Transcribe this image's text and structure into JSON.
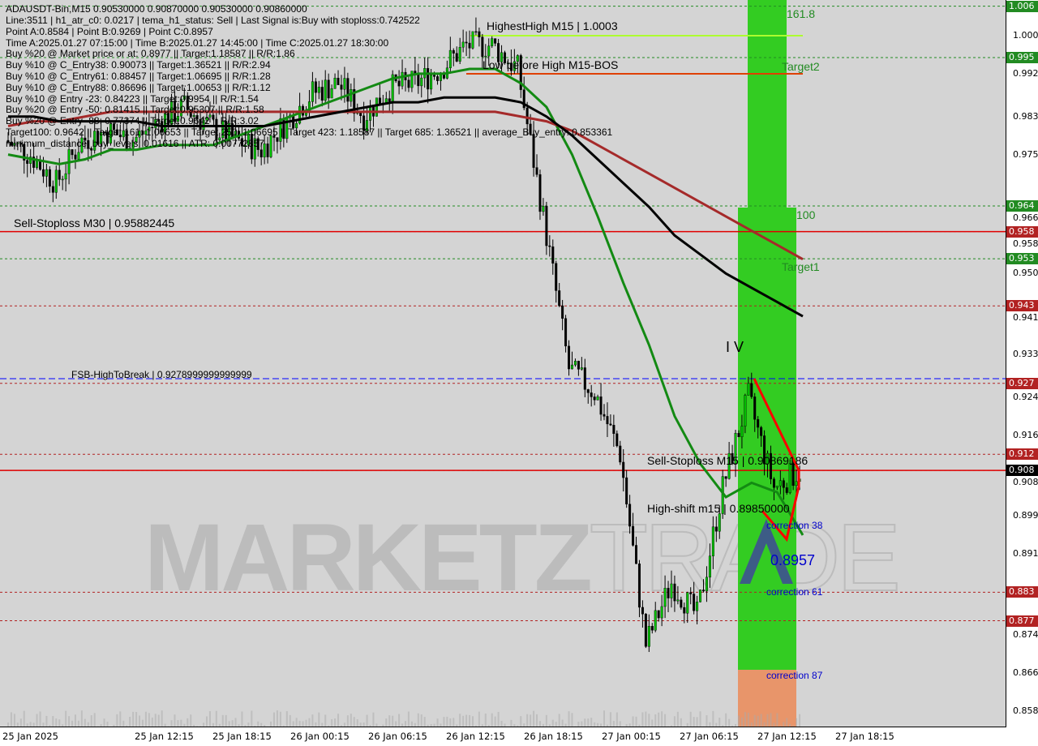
{
  "header": {
    "symbol_line": "ADAUSDT-Bin,M15  0.90530000 0.90870000 0.90530000 0.90860000",
    "lines": [
      "Line:3511 | h1_atr_c0: 0.0217 | tema_h1_status: Sell | Last Signal is:Buy with stoploss:0.742522",
      "Point A:0.8584 | Point B:0.9269 | Point C:0.8957",
      "Time A:2025.01.27 07:15:00 | Time B:2025.01.27 14:45:00 | Time C:2025.01.27 18:30:00",
      "Buy %20 @ Market price or at: 0.8977 || Target:1.18587 || R/R:1.86",
      "Buy %10 @ C_Entry38: 0.90073 || Target:1.36521 || R/R:2.94",
      "Buy %10 @ C_Entry61: 0.88457 || Target:1.06695 || R/R:1.28",
      "Buy %10 @ C_Entry88: 0.86696 || Target:1.00653 || R/R:1.12",
      "Buy %10 @ Entry -23: 0.84223 || Target:0.9954 || R/R:1.54",
      "Buy %20 @ Entry -50: 0.81415 || Target:0.95307 || R/R:1.58",
      "Buy %20 @ Entry -88: 0.77374 || Target:0.9642 || R/R:3.02",
      "Target100: 0.9642 || Target 161: 1.00653 || Target 250: 1.06695 || Target 423: 1.18587 || Target 685: 1.36521 || average_Buy_entry: 0.853361",
      "minimum_distance_buy_levels: 0.01616 || ATR: 0.00772857"
    ]
  },
  "annotations": {
    "highest_high": "HighestHigh   M15 | 1.0003",
    "low_before_high": "Low before High   M15-BOS",
    "sell_stoploss_m30": "Sell-Stoploss M30 | 0.95882445",
    "fsb": "FSB-HighToBreak | 0.9278999999999999",
    "sell_stoploss_m15": "Sell-Stoploss M15 | 0.90869186",
    "high_shift": "High-shift m15 | 0.89850000",
    "point_c": "0.8957",
    "wave": "I V",
    "fib_1618": "161.8",
    "target2": "Target2",
    "fib_100": "100",
    "target1": "Target1",
    "corr38": "correction 38",
    "corr61": "correction 61",
    "corr87": "correction 87"
  },
  "watermark": {
    "bold": "MARKETZ",
    "outline": "TRADE"
  },
  "colors": {
    "bull": "#00c000",
    "bear": "#000000",
    "green_ma": "#138a13",
    "brown_ma": "#a52a2a",
    "black_ma": "#000000",
    "zone_green": "#33cc22",
    "zone_orange": "#e8956a",
    "red_line": "#e00000",
    "blue_line": "#0000ff"
  },
  "chart_data": {
    "type": "candlestick",
    "symbol": "ADAUSDT-Bin",
    "timeframe": "M15",
    "ylim": [
      0.854,
      1.0075
    ],
    "y_ticks": [
      "1.000",
      "0.992",
      "0.983",
      "0.975",
      "0.966",
      "0.958",
      "0.950",
      "0.941",
      "0.933",
      "0.924",
      "0.916",
      "0.908",
      "0.899",
      "0.891",
      "0.874",
      "0.866",
      "0.858"
    ],
    "x_ticks": [
      "25 Jan 2025",
      "25 Jan 12:15",
      "25 Jan 18:15",
      "26 Jan 00:15",
      "26 Jan 06:15",
      "26 Jan 12:15",
      "26 Jan 18:15",
      "27 Jan 00:15",
      "27 Jan 06:15",
      "27 Jan 12:15",
      "27 Jan 18:15"
    ],
    "price_levels": [
      {
        "label": "1.006",
        "price": 1.0062,
        "color": "#228b22"
      },
      {
        "label": "0.995",
        "price": 0.9954,
        "color": "#228b22"
      },
      {
        "label": "0.964",
        "price": 0.9642,
        "color": "#228b22"
      },
      {
        "label": "0.958",
        "price": 0.9588,
        "color": "#b22222"
      },
      {
        "label": "0.953",
        "price": 0.9531,
        "color": "#228b22"
      },
      {
        "label": "0.943",
        "price": 0.9432,
        "color": "#b22222"
      },
      {
        "label": "0.927",
        "price": 0.9269,
        "color": "#b22222"
      },
      {
        "label": "0.912",
        "price": 0.912,
        "color": "#b22222"
      },
      {
        "label": "0.908",
        "price": 0.9086,
        "color": "#000000"
      },
      {
        "label": "0.883",
        "price": 0.883,
        "color": "#b22222"
      },
      {
        "label": "0.877",
        "price": 0.877,
        "color": "#b22222"
      }
    ],
    "close_2h": [
      0.978,
      0.975,
      0.969,
      0.978,
      0.98,
      0.978,
      0.982,
      0.985,
      0.981,
      0.978,
      0.976,
      0.982,
      0.988,
      0.99,
      0.983,
      0.989,
      0.99,
      0.993,
      0.998,
      0.998,
      0.993,
      0.962,
      0.93,
      0.925,
      0.912,
      0.872,
      0.885,
      0.878,
      0.905,
      0.924,
      0.905,
      0.9086
    ],
    "green_ma": [
      0.975,
      0.974,
      0.973,
      0.974,
      0.976,
      0.976,
      0.977,
      0.977,
      0.977,
      0.979,
      0.981,
      0.983,
      0.985,
      0.987,
      0.989,
      0.991,
      0.992,
      0.992,
      0.993,
      0.993,
      0.99,
      0.985,
      0.975,
      0.962,
      0.948,
      0.935,
      0.92,
      0.91,
      0.903,
      0.906,
      0.904,
      0.895
    ],
    "brown_ma": [
      0.981,
      0.982,
      0.982,
      0.983,
      0.984,
      0.984,
      0.984,
      0.984,
      0.984,
      0.984,
      0.984,
      0.984,
      0.984,
      0.984,
      0.984,
      0.984,
      0.984,
      0.984,
      0.984,
      0.984,
      0.983,
      0.982,
      0.98,
      0.977,
      0.974,
      0.971,
      0.968,
      0.965,
      0.962,
      0.959,
      0.956,
      0.953
    ],
    "black_ma": [
      0.983,
      0.983,
      0.982,
      0.982,
      0.982,
      0.982,
      0.981,
      0.981,
      0.981,
      0.981,
      0.981,
      0.982,
      0.983,
      0.984,
      0.985,
      0.986,
      0.986,
      0.987,
      0.987,
      0.987,
      0.986,
      0.983,
      0.979,
      0.974,
      0.969,
      0.964,
      0.958,
      0.954,
      0.95,
      0.947,
      0.944,
      0.941
    ]
  }
}
